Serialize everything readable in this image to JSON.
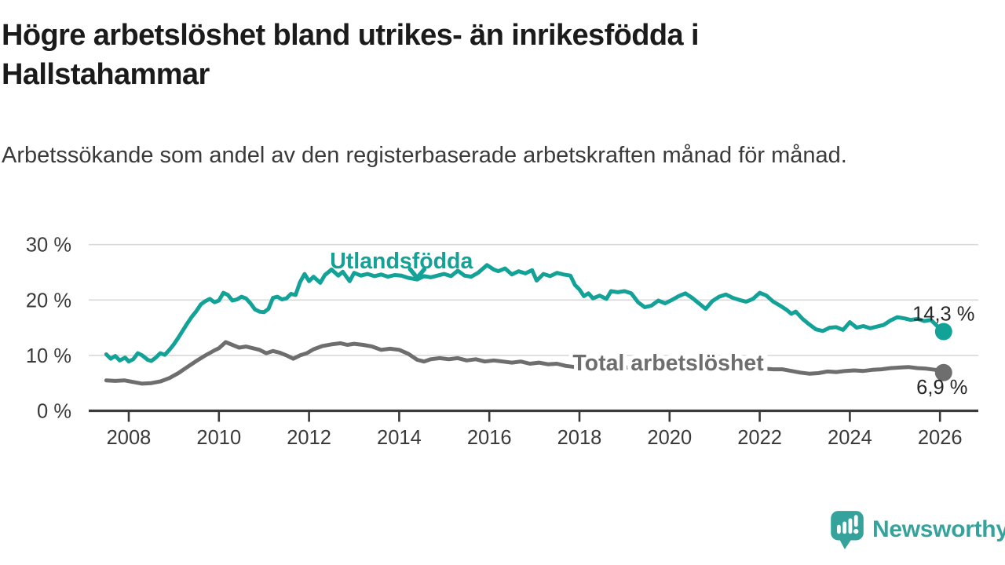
{
  "header": {
    "title": "Högre arbetslöshet bland utrikes- än inrikesfödda i Hallstahammar",
    "subtitle": "Arbetssökande som andel av den registerbaserade arbetskraften månad för månad."
  },
  "footer": {
    "brand": "Newsworthy",
    "logo_icon": "newsworthy-speech-bubble-bar-chart-icon"
  },
  "colors": {
    "background": "#ffffff",
    "accent_teal": "#13a297",
    "line_gray": "#6e6e6e",
    "grid": "#d8d8d8",
    "axis": "#3a3a3a",
    "title_text": "#1b1b1b",
    "body_text": "#3a3a3a",
    "value_label_text": "#262626",
    "logo_teal": "#35a39b"
  },
  "chart_data": {
    "type": "line",
    "title": "Högre arbetslöshet bland utrikes- än inrikesfödda i Hallstahammar",
    "subtitle": "Arbetssökande som andel av den registerbaserade arbetskraften månad för månad.",
    "unit": "%",
    "grid": "horizontal",
    "legend_position": "inline-labels",
    "x_axis": {
      "ticks": [
        2008,
        2010,
        2012,
        2014,
        2016,
        2018,
        2020,
        2022,
        2024,
        2026
      ],
      "range": [
        2007.1,
        2026.6
      ]
    },
    "y_axis": {
      "ticks": [
        {
          "value": 0,
          "label": "0 %"
        },
        {
          "value": 10,
          "label": "10 %"
        },
        {
          "value": 20,
          "label": "20 %"
        },
        {
          "value": 30,
          "label": "30 %"
        }
      ],
      "ylim": [
        0,
        32
      ]
    },
    "series": [
      {
        "id": "utlandsfodda",
        "name": "Utlandsfödda",
        "color": "#13a297",
        "end_label": "14,3 %",
        "end_value": 14.3,
        "end_label_position": "above",
        "inline_label": {
          "text": "Utlandsfödda",
          "year": 2014.05,
          "value": 25.7,
          "halo": false,
          "arrow": {
            "year": 2014.4,
            "value": 23.7
          }
        },
        "points": [
          [
            2007.5,
            10.2
          ],
          [
            2007.6,
            9.4
          ],
          [
            2007.7,
            9.9
          ],
          [
            2007.8,
            9.1
          ],
          [
            2007.92,
            9.6
          ],
          [
            2008.0,
            8.9
          ],
          [
            2008.1,
            9.3
          ],
          [
            2008.2,
            10.4
          ],
          [
            2008.3,
            10.0
          ],
          [
            2008.42,
            9.2
          ],
          [
            2008.5,
            9.0
          ],
          [
            2008.6,
            9.6
          ],
          [
            2008.7,
            10.4
          ],
          [
            2008.8,
            10.1
          ],
          [
            2008.9,
            11.0
          ],
          [
            2009.0,
            12.0
          ],
          [
            2009.1,
            13.2
          ],
          [
            2009.2,
            14.5
          ],
          [
            2009.3,
            15.8
          ],
          [
            2009.4,
            17.0
          ],
          [
            2009.5,
            18.0
          ],
          [
            2009.6,
            19.2
          ],
          [
            2009.7,
            19.8
          ],
          [
            2009.8,
            20.2
          ],
          [
            2009.9,
            19.6
          ],
          [
            2010.0,
            19.9
          ],
          [
            2010.1,
            21.3
          ],
          [
            2010.2,
            20.9
          ],
          [
            2010.3,
            19.9
          ],
          [
            2010.4,
            20.1
          ],
          [
            2010.5,
            20.6
          ],
          [
            2010.6,
            20.3
          ],
          [
            2010.7,
            19.4
          ],
          [
            2010.8,
            18.3
          ],
          [
            2010.9,
            17.9
          ],
          [
            2011.0,
            17.8
          ],
          [
            2011.1,
            18.4
          ],
          [
            2011.2,
            20.4
          ],
          [
            2011.3,
            20.6
          ],
          [
            2011.4,
            20.1
          ],
          [
            2011.5,
            20.3
          ],
          [
            2011.6,
            21.1
          ],
          [
            2011.7,
            20.9
          ],
          [
            2011.8,
            23.2
          ],
          [
            2011.9,
            24.7
          ],
          [
            2012.0,
            23.4
          ],
          [
            2012.1,
            24.2
          ],
          [
            2012.25,
            23.1
          ],
          [
            2012.35,
            24.5
          ],
          [
            2012.5,
            25.5
          ],
          [
            2012.65,
            24.4
          ],
          [
            2012.75,
            25.1
          ],
          [
            2012.9,
            23.4
          ],
          [
            2013.0,
            24.9
          ],
          [
            2013.15,
            24.4
          ],
          [
            2013.3,
            24.7
          ],
          [
            2013.45,
            24.3
          ],
          [
            2013.6,
            24.6
          ],
          [
            2013.75,
            24.2
          ],
          [
            2013.9,
            24.5
          ],
          [
            2014.05,
            24.4
          ],
          [
            2014.2,
            24.0
          ],
          [
            2014.4,
            23.7
          ],
          [
            2014.55,
            24.3
          ],
          [
            2014.7,
            24.1
          ],
          [
            2014.85,
            24.4
          ],
          [
            2015.0,
            24.7
          ],
          [
            2015.15,
            24.3
          ],
          [
            2015.3,
            25.3
          ],
          [
            2015.45,
            24.4
          ],
          [
            2015.6,
            24.2
          ],
          [
            2015.75,
            24.9
          ],
          [
            2015.95,
            26.3
          ],
          [
            2016.1,
            25.5
          ],
          [
            2016.2,
            25.2
          ],
          [
            2016.35,
            25.7
          ],
          [
            2016.5,
            24.6
          ],
          [
            2016.65,
            25.2
          ],
          [
            2016.8,
            24.8
          ],
          [
            2016.95,
            25.4
          ],
          [
            2017.05,
            23.5
          ],
          [
            2017.2,
            24.7
          ],
          [
            2017.35,
            24.3
          ],
          [
            2017.5,
            24.9
          ],
          [
            2017.65,
            24.6
          ],
          [
            2017.8,
            24.4
          ],
          [
            2017.9,
            22.7
          ],
          [
            2018.0,
            21.9
          ],
          [
            2018.1,
            20.7
          ],
          [
            2018.2,
            21.2
          ],
          [
            2018.3,
            20.3
          ],
          [
            2018.45,
            20.8
          ],
          [
            2018.6,
            20.2
          ],
          [
            2018.7,
            21.6
          ],
          [
            2018.85,
            21.4
          ],
          [
            2019.0,
            21.6
          ],
          [
            2019.15,
            21.2
          ],
          [
            2019.3,
            19.6
          ],
          [
            2019.45,
            18.7
          ],
          [
            2019.6,
            19.0
          ],
          [
            2019.75,
            19.9
          ],
          [
            2019.9,
            19.4
          ],
          [
            2020.05,
            20.0
          ],
          [
            2020.2,
            20.7
          ],
          [
            2020.35,
            21.2
          ],
          [
            2020.5,
            20.4
          ],
          [
            2020.65,
            19.4
          ],
          [
            2020.8,
            18.4
          ],
          [
            2020.95,
            19.8
          ],
          [
            2021.1,
            20.6
          ],
          [
            2021.25,
            21.0
          ],
          [
            2021.4,
            20.4
          ],
          [
            2021.55,
            20.0
          ],
          [
            2021.7,
            19.7
          ],
          [
            2021.85,
            20.2
          ],
          [
            2022.0,
            21.3
          ],
          [
            2022.15,
            20.8
          ],
          [
            2022.3,
            19.7
          ],
          [
            2022.45,
            19.0
          ],
          [
            2022.6,
            18.2
          ],
          [
            2022.7,
            17.5
          ],
          [
            2022.8,
            17.9
          ],
          [
            2022.95,
            16.6
          ],
          [
            2023.1,
            15.6
          ],
          [
            2023.25,
            14.7
          ],
          [
            2023.4,
            14.4
          ],
          [
            2023.55,
            15.0
          ],
          [
            2023.7,
            15.1
          ],
          [
            2023.85,
            14.6
          ],
          [
            2024.0,
            16.0
          ],
          [
            2024.15,
            15.0
          ],
          [
            2024.3,
            15.3
          ],
          [
            2024.45,
            14.9
          ],
          [
            2024.6,
            15.2
          ],
          [
            2024.75,
            15.5
          ],
          [
            2024.9,
            16.3
          ],
          [
            2025.05,
            16.9
          ],
          [
            2025.2,
            16.7
          ],
          [
            2025.35,
            16.4
          ],
          [
            2025.5,
            16.6
          ],
          [
            2025.65,
            16.2
          ],
          [
            2025.8,
            16.4
          ],
          [
            2025.95,
            15.2
          ],
          [
            2026.08,
            14.3
          ]
        ]
      },
      {
        "id": "total",
        "name": "Total arbetslöshet",
        "color": "#6e6e6e",
        "end_label": "6,9 %",
        "end_value": 6.9,
        "end_label_position": "below",
        "inline_label": {
          "text": "Total arbetslöshet",
          "year": 2019.97,
          "value": 7.3,
          "halo": true
        },
        "points": [
          [
            2007.5,
            5.5
          ],
          [
            2007.7,
            5.4
          ],
          [
            2007.9,
            5.5
          ],
          [
            2008.1,
            5.2
          ],
          [
            2008.3,
            4.9
          ],
          [
            2008.5,
            5.0
          ],
          [
            2008.7,
            5.3
          ],
          [
            2008.9,
            5.9
          ],
          [
            2009.1,
            6.8
          ],
          [
            2009.3,
            7.9
          ],
          [
            2009.5,
            9.0
          ],
          [
            2009.7,
            10.0
          ],
          [
            2009.9,
            10.9
          ],
          [
            2010.0,
            11.3
          ],
          [
            2010.15,
            12.4
          ],
          [
            2010.3,
            11.9
          ],
          [
            2010.45,
            11.4
          ],
          [
            2010.6,
            11.6
          ],
          [
            2010.75,
            11.3
          ],
          [
            2010.9,
            11.0
          ],
          [
            2011.05,
            10.4
          ],
          [
            2011.2,
            10.8
          ],
          [
            2011.35,
            10.5
          ],
          [
            2011.5,
            10.0
          ],
          [
            2011.65,
            9.4
          ],
          [
            2011.8,
            10.0
          ],
          [
            2011.95,
            10.4
          ],
          [
            2012.1,
            11.1
          ],
          [
            2012.3,
            11.7
          ],
          [
            2012.5,
            12.0
          ],
          [
            2012.7,
            12.2
          ],
          [
            2012.85,
            11.9
          ],
          [
            2013.0,
            12.1
          ],
          [
            2013.2,
            11.9
          ],
          [
            2013.4,
            11.6
          ],
          [
            2013.6,
            11.0
          ],
          [
            2013.8,
            11.2
          ],
          [
            2014.0,
            11.0
          ],
          [
            2014.2,
            10.3
          ],
          [
            2014.4,
            9.2
          ],
          [
            2014.55,
            8.9
          ],
          [
            2014.7,
            9.3
          ],
          [
            2014.9,
            9.5
          ],
          [
            2015.1,
            9.3
          ],
          [
            2015.3,
            9.5
          ],
          [
            2015.5,
            9.1
          ],
          [
            2015.7,
            9.3
          ],
          [
            2015.9,
            8.9
          ],
          [
            2016.1,
            9.1
          ],
          [
            2016.3,
            8.9
          ],
          [
            2016.5,
            8.7
          ],
          [
            2016.7,
            8.9
          ],
          [
            2016.9,
            8.5
          ],
          [
            2017.1,
            8.7
          ],
          [
            2017.3,
            8.4
          ],
          [
            2017.5,
            8.5
          ],
          [
            2017.7,
            8.1
          ],
          [
            2017.9,
            7.9
          ],
          [
            2018.1,
            8.0
          ],
          [
            2018.3,
            7.9
          ],
          [
            2018.5,
            8.0
          ],
          [
            2018.7,
            7.8
          ],
          [
            2018.9,
            7.9
          ],
          [
            2019.1,
            7.8
          ],
          [
            2019.3,
            7.9
          ],
          [
            2019.5,
            7.7
          ],
          [
            2019.7,
            7.8
          ],
          [
            2019.9,
            7.7
          ],
          [
            2020.1,
            7.8
          ],
          [
            2020.3,
            7.9
          ],
          [
            2020.5,
            8.0
          ],
          [
            2020.7,
            7.9
          ],
          [
            2020.9,
            7.8
          ],
          [
            2021.1,
            7.9
          ],
          [
            2021.3,
            7.8
          ],
          [
            2021.5,
            7.7
          ],
          [
            2021.7,
            7.6
          ],
          [
            2021.9,
            7.7
          ],
          [
            2022.1,
            7.6
          ],
          [
            2022.3,
            7.5
          ],
          [
            2022.5,
            7.5
          ],
          [
            2022.7,
            7.2
          ],
          [
            2022.9,
            6.9
          ],
          [
            2023.1,
            6.7
          ],
          [
            2023.3,
            6.8
          ],
          [
            2023.5,
            7.1
          ],
          [
            2023.7,
            7.0
          ],
          [
            2023.9,
            7.2
          ],
          [
            2024.1,
            7.3
          ],
          [
            2024.3,
            7.2
          ],
          [
            2024.5,
            7.4
          ],
          [
            2024.7,
            7.5
          ],
          [
            2024.9,
            7.7
          ],
          [
            2025.1,
            7.8
          ],
          [
            2025.3,
            7.9
          ],
          [
            2025.5,
            7.7
          ],
          [
            2025.7,
            7.6
          ],
          [
            2025.9,
            7.4
          ],
          [
            2026.08,
            6.9
          ]
        ]
      }
    ]
  }
}
